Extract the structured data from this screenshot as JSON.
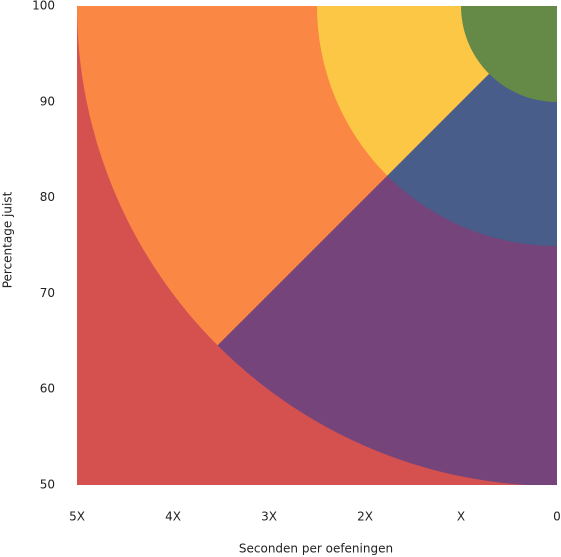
{
  "chart_data": {
    "type": "zones",
    "x_label": "Seconden per oefeningen",
    "y_label": "Percentage juist",
    "xlim": [
      5,
      0
    ],
    "xticks": [
      {
        "value": 5,
        "label": "5X"
      },
      {
        "value": 4,
        "label": "4X"
      },
      {
        "value": 3,
        "label": "3X"
      },
      {
        "value": 2,
        "label": "2X"
      },
      {
        "value": 1,
        "label": "X"
      },
      0
    ],
    "ylim": [
      50,
      100
    ],
    "yticks": [
      50,
      60,
      70,
      80,
      90,
      100
    ],
    "center": [
      0,
      100
    ],
    "background": "#d45150",
    "zones": [
      {
        "color": "#fa8744",
        "radius": 5,
        "angles": [
          0,
          45
        ]
      },
      {
        "color": "#75447b",
        "radius": 5,
        "angles": [
          45,
          90
        ]
      },
      {
        "color": "#fcc744",
        "radius": 2.5,
        "angles": [
          0,
          45
        ]
      },
      {
        "color": "#485d8a",
        "radius": 2.5,
        "angles": [
          45,
          90
        ]
      },
      {
        "color": "#658a48",
        "radius": 1,
        "angles": [
          0,
          90
        ]
      }
    ]
  }
}
